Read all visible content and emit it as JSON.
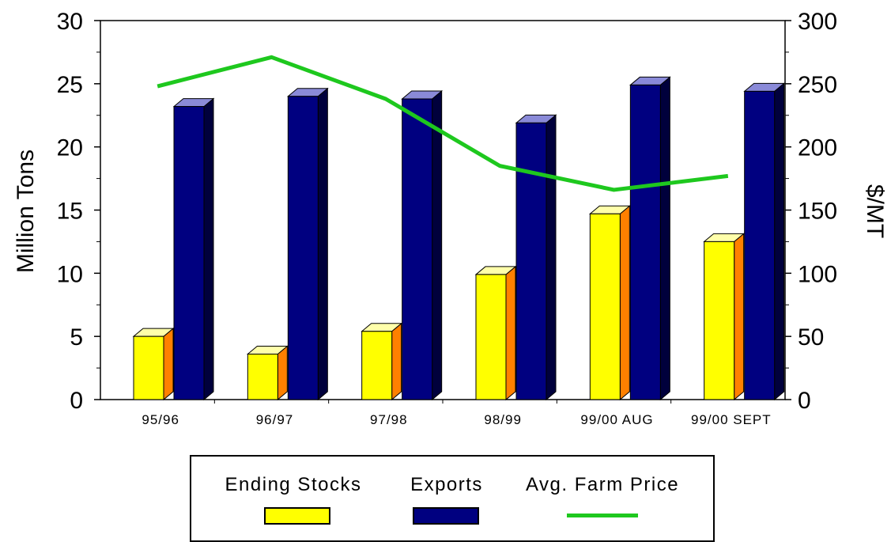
{
  "chart_data": {
    "type": "bar",
    "categories": [
      "95/96",
      "96/97",
      "97/98",
      "98/99",
      "99/00 AUG",
      "99/00 SEPT"
    ],
    "series": [
      {
        "name": "Ending Stocks",
        "axis": "left",
        "kind": "bar",
        "values": [
          5.0,
          3.6,
          5.4,
          9.9,
          14.7,
          12.5
        ]
      },
      {
        "name": "Exports",
        "axis": "left",
        "kind": "bar",
        "values": [
          23.2,
          24.0,
          23.8,
          21.9,
          24.9,
          24.4
        ]
      },
      {
        "name": "Avg. Farm Price",
        "axis": "right",
        "kind": "line",
        "values": [
          248,
          271,
          238,
          185,
          166,
          177
        ]
      }
    ],
    "ylabel": "Million Tons",
    "y2label": "$/MT",
    "ylim": [
      0,
      30
    ],
    "y2lim": [
      0,
      300
    ],
    "yticks": [
      "0",
      "5",
      "10",
      "15",
      "20",
      "25",
      "30"
    ],
    "y2ticks": [
      "0",
      "50",
      "100",
      "150",
      "200",
      "250",
      "300"
    ],
    "legend_position": "bottom",
    "grid": false
  },
  "colors": {
    "stocks_front": "#ffff00",
    "stocks_top": "#ffffaa",
    "stocks_side": "#ff8000",
    "exports_front": "#000080",
    "exports_top": "#8a8ad8",
    "exports_side": "#00003c",
    "price_line": "#1ec81e"
  },
  "legend": {
    "items": [
      {
        "label": "Ending Stocks",
        "swatch": "bar"
      },
      {
        "label": "Exports",
        "swatch": "bar"
      },
      {
        "label": "Avg. Farm Price",
        "swatch": "line"
      }
    ]
  }
}
